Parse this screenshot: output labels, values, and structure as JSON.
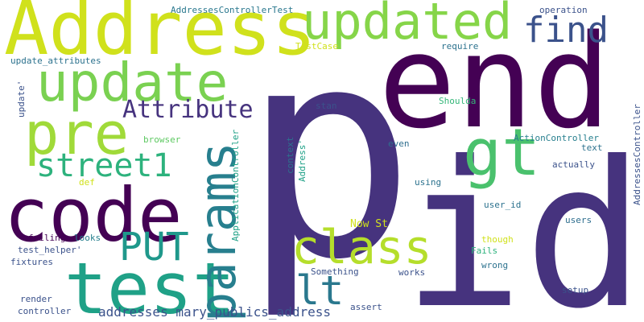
{
  "colors": {
    "background": "#ffffff",
    "dark_purple": "#440154",
    "indigo": "#46337e",
    "blue": "#365c8d",
    "teal_blue": "#277f8e",
    "teal": "#1fa187",
    "green": "#4ac16d",
    "light_green": "#a0da39",
    "yellow_green": "#d0e11c",
    "yellow": "#fde725"
  },
  "words": {
    "p": "p",
    "end": "end",
    "id": "id",
    "address": "Address",
    "updated": "updated",
    "code": "code",
    "update": "update",
    "pre": "pre",
    "test": "test",
    "params": "params",
    "gt": "gt",
    "class": "class",
    "lt": "lt",
    "put": "PUT",
    "street1": "street1",
    "find": "find",
    "attribute": "Attribute",
    "addresses_controller_test": "AddressesControllerTest",
    "operation": "operation",
    "test_case": "TestCase",
    "require": "require",
    "update_attributes": "update_attributes",
    "update_quote": "update'",
    "stan": "stan",
    "shoulda": "Shoulda",
    "application_controller": "ApplicationController",
    "context": "context",
    "address_quote": "Address'",
    "browser": "browser",
    "even": "even",
    "action_controller": "ActionController",
    "text": "text",
    "addresses_controller": "AddressesController",
    "def": "def",
    "actually": "actually",
    "using": "using",
    "user_id": "user_id",
    "now_st": "Now St",
    "users": "users",
    "failing": "failing",
    "looks": "looks",
    "test_helper": "test_helper'",
    "though": "though",
    "fails": "Fails",
    "fixtures": "fixtures",
    "wrong": "wrong",
    "something": "Something",
    "works": "works",
    "render": "render",
    "setup": "setup",
    "controller": "controller",
    "assert": "assert",
    "addresses_mary": "addresses mary_publics_address"
  }
}
